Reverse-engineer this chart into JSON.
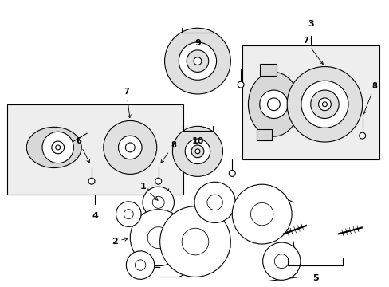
{
  "bg_color": "#ffffff",
  "line_color": "#000000",
  "box_fill": "#eeeeee",
  "part_fill": "#d8d8d8",
  "pulley_fill": "#e0e0e0"
}
